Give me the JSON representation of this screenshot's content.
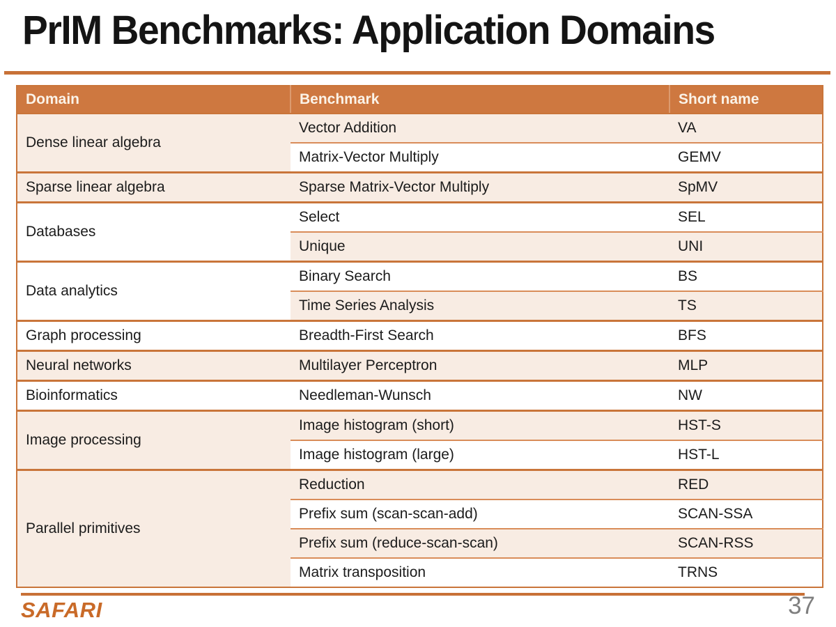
{
  "slide": {
    "title": "PrIM Benchmarks: Application Domains",
    "logo_text": "SAFARI",
    "page_number": "37"
  },
  "colors": {
    "header_orange": "#CE7840",
    "border_orange": "#C9753A",
    "inner_divider_orange": "#D98C59",
    "rule_orange": "#C87137",
    "row_pink": "#F8ECE3",
    "row_white": "#FFFFFF",
    "logo_orange": "#C96A28",
    "page_number_gray": "#7F7F7F"
  },
  "table": {
    "headers": {
      "domain": "Domain",
      "benchmark": "Benchmark",
      "short_name": "Short name"
    },
    "groups": [
      {
        "domain": "Dense linear algebra",
        "rows": [
          {
            "benchmark": "Vector Addition",
            "short": "VA"
          },
          {
            "benchmark": "Matrix-Vector Multiply",
            "short": "GEMV"
          }
        ]
      },
      {
        "domain": "Sparse linear algebra",
        "rows": [
          {
            "benchmark": "Sparse Matrix-Vector Multiply",
            "short": "SpMV"
          }
        ]
      },
      {
        "domain": "Databases",
        "rows": [
          {
            "benchmark": "Select",
            "short": "SEL"
          },
          {
            "benchmark": "Unique",
            "short": "UNI"
          }
        ]
      },
      {
        "domain": "Data analytics",
        "rows": [
          {
            "benchmark": "Binary Search",
            "short": "BS"
          },
          {
            "benchmark": "Time Series Analysis",
            "short": "TS"
          }
        ]
      },
      {
        "domain": "Graph processing",
        "rows": [
          {
            "benchmark": "Breadth-First Search",
            "short": "BFS"
          }
        ]
      },
      {
        "domain": "Neural networks",
        "rows": [
          {
            "benchmark": "Multilayer Perceptron",
            "short": "MLP"
          }
        ]
      },
      {
        "domain": "Bioinformatics",
        "rows": [
          {
            "benchmark": "Needleman-Wunsch",
            "short": "NW"
          }
        ]
      },
      {
        "domain": "Image processing",
        "rows": [
          {
            "benchmark": "Image histogram (short)",
            "short": "HST-S"
          },
          {
            "benchmark": "Image histogram (large)",
            "short": "HST-L"
          }
        ]
      },
      {
        "domain": "Parallel primitives",
        "rows": [
          {
            "benchmark": "Reduction",
            "short": "RED"
          },
          {
            "benchmark": "Prefix sum (scan-scan-add)",
            "short": "SCAN-SSA"
          },
          {
            "benchmark": "Prefix sum (reduce-scan-scan)",
            "short": "SCAN-RSS"
          },
          {
            "benchmark": "Matrix transposition",
            "short": "TRNS"
          }
        ]
      }
    ]
  }
}
